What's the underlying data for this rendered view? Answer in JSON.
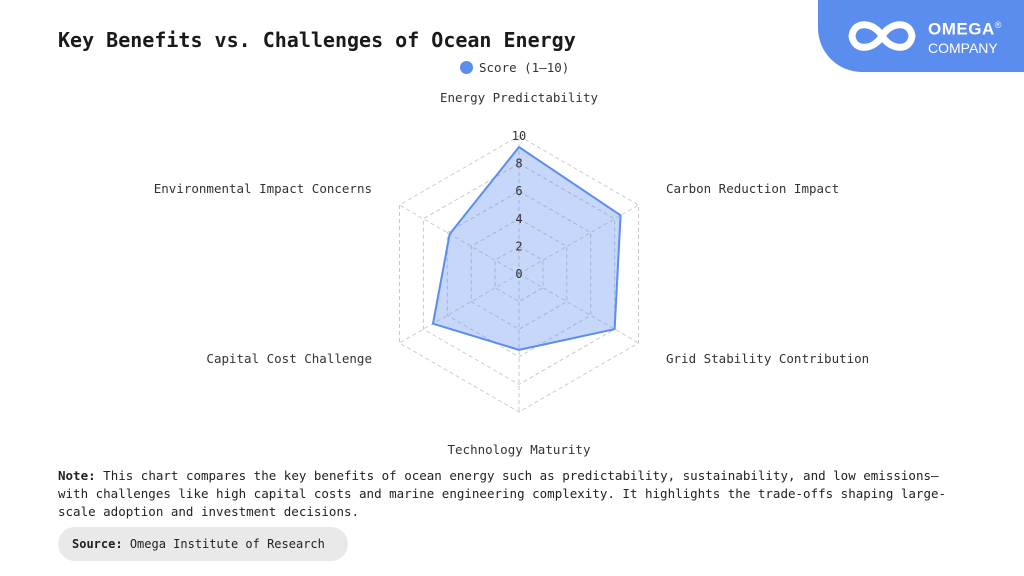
{
  "title": "Key Benefits vs. Challenges of Ocean Energy",
  "logo": {
    "name": "OMEGA",
    "mark": "®",
    "sub": "COMPANY",
    "icon": "infinity-icon"
  },
  "colors": {
    "accent": "#5b8dee",
    "fill": "rgba(91,141,238,0.35)",
    "grid": "#c8c8c8",
    "text": "#333333"
  },
  "note": {
    "label": "Note:",
    "text": "This chart compares the key benefits of ocean energy such as predictability, sustainability, and low emissions—with challenges like high capital costs and marine engineering complexity. It highlights the trade-offs shaping large-scale adoption and investment decisions."
  },
  "source": {
    "label": "Source:",
    "text": "Omega Institute of Research"
  },
  "chart_data": {
    "type": "radar",
    "title": "Key Benefits vs. Challenges of Ocean Energy",
    "categories": [
      "Energy Predictability",
      "Carbon Reduction Impact",
      "Grid Stability Contribution",
      "Technology Maturity",
      "Capital Cost Challenge",
      "Environmental Impact Concerns"
    ],
    "series": [
      {
        "name": "Score (1–10)",
        "values": [
          9.2,
          8.5,
          8.0,
          5.5,
          7.2,
          5.8
        ]
      }
    ],
    "rlim": [
      0,
      10
    ],
    "ticks": [
      0,
      2,
      4,
      6,
      8,
      10
    ],
    "grid": true,
    "legend": "top-center"
  }
}
